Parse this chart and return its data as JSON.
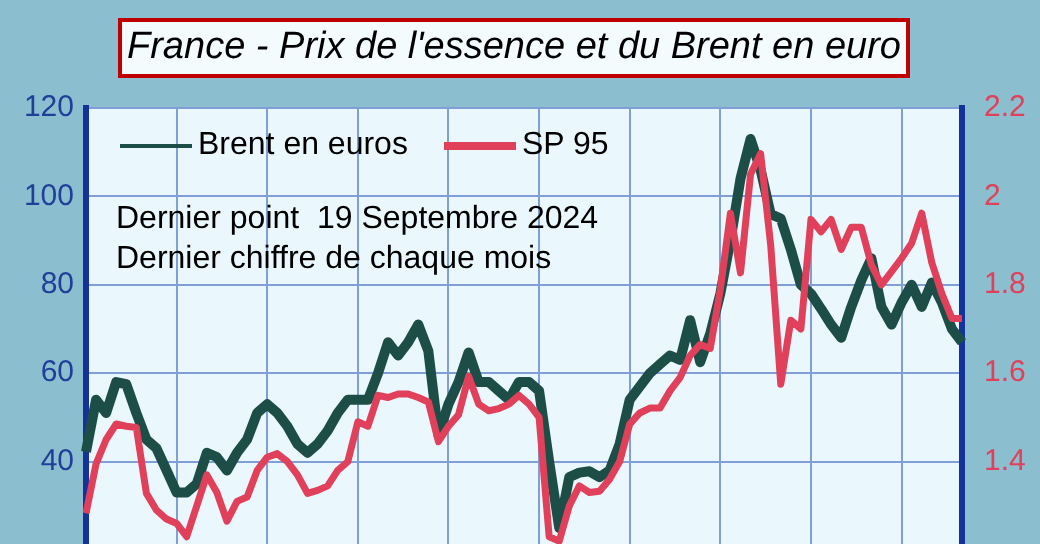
{
  "chart_data": {
    "type": "line",
    "title": "France - Prix de l'essence et du Brent en euro",
    "annotations": [
      "Dernier point  19 Septembre 2024",
      "Dernier chiffre de chaque mois"
    ],
    "categories": [
      null,
      null,
      null,
      null,
      null,
      null,
      null,
      null,
      null,
      null,
      null,
      null,
      null,
      null,
      null,
      null,
      null,
      null,
      null,
      null,
      null,
      null,
      null,
      null,
      null,
      null,
      null,
      null,
      null,
      null,
      null,
      null,
      null,
      null,
      null,
      null,
      null,
      null,
      null,
      null,
      null,
      null,
      null,
      null,
      null,
      null,
      null,
      null,
      null,
      null,
      null,
      null,
      null,
      null,
      null,
      null,
      null,
      null,
      null,
      null,
      null,
      null,
      null,
      null,
      null,
      null,
      null,
      null,
      null,
      null,
      null,
      null,
      null,
      null,
      null,
      null,
      null,
      null,
      null,
      null,
      null,
      null,
      null,
      null,
      null,
      null,
      null,
      null
    ],
    "series": [
      {
        "name": "Brent en euros",
        "color": "#1d4d47",
        "values": [
          42.2,
          54,
          51,
          58,
          57.5,
          51,
          45,
          43,
          38,
          33,
          33,
          35,
          42,
          41,
          38,
          42,
          45,
          51,
          53,
          51,
          48,
          44,
          42,
          44,
          47,
          51,
          54,
          54,
          54,
          60,
          67,
          64,
          67,
          71,
          65,
          46,
          53,
          58,
          64.7,
          58,
          58,
          56,
          54,
          58,
          58,
          56,
          40,
          25,
          36.5,
          37.5,
          37.8,
          36.5,
          38,
          44,
          54,
          57,
          60,
          62,
          64,
          63,
          72,
          62.5,
          69,
          78,
          90,
          104,
          113,
          106,
          96,
          95,
          88,
          80,
          78,
          74.6,
          71,
          68,
          75,
          81,
          86,
          75,
          71,
          76,
          80,
          75,
          80.5,
          76,
          70,
          67
        ]
      },
      {
        "name": "SP 95",
        "color": "#e0405a",
        "axis": "y2",
        "values": [
          1.283,
          1.395,
          1.45,
          1.485,
          1.48,
          1.477,
          1.328,
          1.29,
          1.27,
          1.26,
          1.23,
          1.3,
          1.37,
          1.33,
          1.265,
          1.31,
          1.32,
          1.38,
          1.41,
          1.418,
          1.4,
          1.37,
          1.328,
          1.335,
          1.345,
          1.38,
          1.4,
          1.49,
          1.48,
          1.55,
          1.545,
          1.553,
          1.553,
          1.545,
          1.535,
          1.445,
          1.48,
          1.506,
          1.593,
          1.53,
          1.515,
          1.52,
          1.53,
          1.55,
          1.53,
          1.5,
          1.23,
          1.22,
          1.3,
          1.345,
          1.33,
          1.333,
          1.36,
          1.4,
          1.485,
          1.51,
          1.521,
          1.521,
          1.56,
          1.59,
          1.64,
          1.665,
          1.656,
          1.79,
          1.962,
          1.827,
          2.05,
          2.097,
          1.89,
          1.575,
          1.72,
          1.7,
          1.948,
          1.92,
          1.948,
          1.88,
          1.93,
          1.93,
          1.845,
          1.8,
          1.83,
          1.86,
          1.894,
          1.962,
          1.85,
          1.78,
          1.724,
          1.724
        ]
      }
    ],
    "ylim": [
      20,
      120
    ],
    "yticks": [
      40,
      60,
      80,
      100,
      120
    ],
    "y2lim": [
      1.2,
      2.2
    ],
    "y2ticks": [
      1.4,
      1.6,
      1.8,
      2,
      2.2
    ],
    "grid": true,
    "legend": "top left",
    "marker": "none",
    "line_style": "solid"
  }
}
